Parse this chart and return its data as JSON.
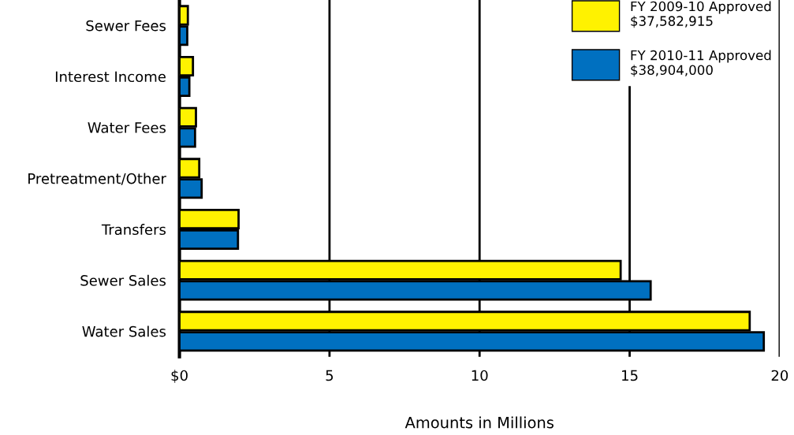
{
  "chart_data": {
    "type": "bar",
    "orientation": "horizontal",
    "xlabel": "Amounts in Millions",
    "categories": [
      "Sewer Fees",
      "Interest Income",
      "Water Fees",
      "Pretreatment/Other",
      "Transfers",
      "Sewer Sales",
      "Water Sales"
    ],
    "series": [
      {
        "name": "FY 2009-10 Approved\n$37,582,915",
        "color": "#fff200",
        "values": [
          0.28,
          0.45,
          0.55,
          0.66,
          1.97,
          14.7,
          19.0
        ]
      },
      {
        "name": "FY 2010-11 Approved\n$38,904,000",
        "color": "#0070c0",
        "values": [
          0.26,
          0.33,
          0.52,
          0.74,
          1.95,
          15.7,
          19.47
        ]
      }
    ],
    "xlim": [
      0,
      20
    ],
    "xticks": [
      {
        "value": 0,
        "label": "$0"
      },
      5,
      10,
      15,
      20
    ],
    "grid": "x",
    "legend": "top right"
  }
}
